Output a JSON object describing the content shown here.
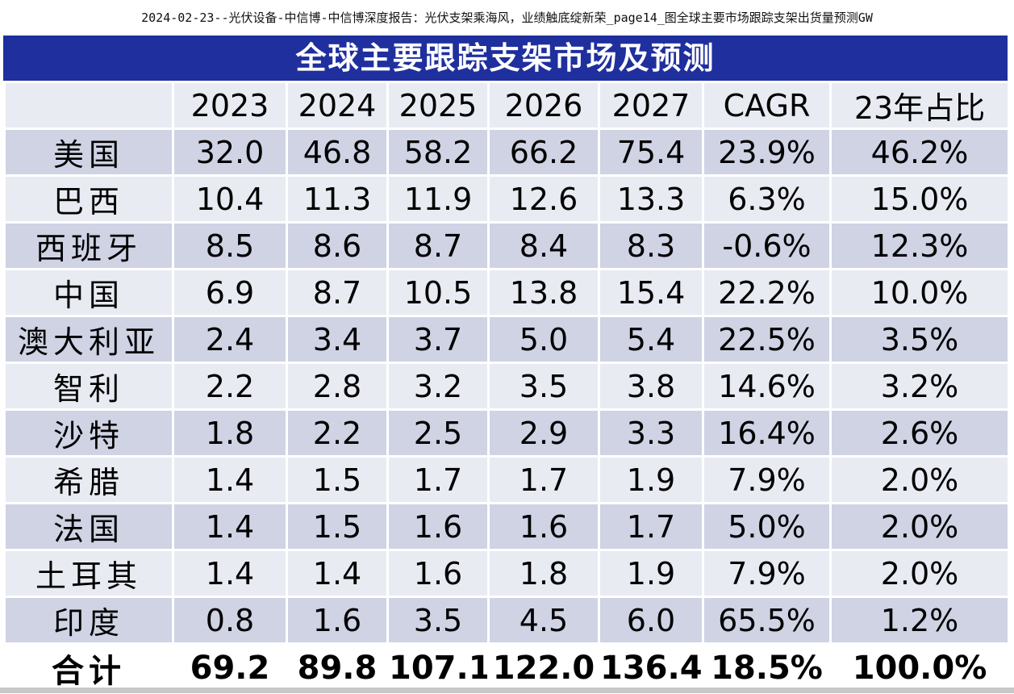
{
  "caption": "2024-02-23--光伏设备-中信博-中信博深度报告：光伏支架乘海风，业绩触底绽新荣_page14_图全球主要市场跟踪支架出货量预测GW",
  "table": {
    "title": "全球主要跟踪支架市场及预测",
    "header": [
      "",
      "2023",
      "2024",
      "2025",
      "2026",
      "2027",
      "CAGR",
      "23年占比"
    ],
    "rows": [
      [
        "美国",
        "32.0",
        "46.8",
        "58.2",
        "66.2",
        "75.4",
        "23.9%",
        "46.2%"
      ],
      [
        "巴西",
        "10.4",
        "11.3",
        "11.9",
        "12.6",
        "13.3",
        "6.3%",
        "15.0%"
      ],
      [
        "西班牙",
        "8.5",
        "8.6",
        "8.7",
        "8.4",
        "8.3",
        "-0.6%",
        "12.3%"
      ],
      [
        "中国",
        "6.9",
        "8.7",
        "10.5",
        "13.8",
        "15.4",
        "22.2%",
        "10.0%"
      ],
      [
        "澳大利亚",
        "2.4",
        "3.4",
        "3.7",
        "5.0",
        "5.4",
        "22.5%",
        "3.5%"
      ],
      [
        "智利",
        "2.2",
        "2.8",
        "3.2",
        "3.5",
        "3.8",
        "14.6%",
        "3.2%"
      ],
      [
        "沙特",
        "1.8",
        "2.2",
        "2.5",
        "2.9",
        "3.3",
        "16.4%",
        "2.6%"
      ],
      [
        "希腊",
        "1.4",
        "1.5",
        "1.7",
        "1.7",
        "1.9",
        "7.9%",
        "2.0%"
      ],
      [
        "法国",
        "1.4",
        "1.5",
        "1.6",
        "1.6",
        "1.7",
        "5.0%",
        "2.0%"
      ],
      [
        "土耳其",
        "1.4",
        "1.4",
        "1.6",
        "1.8",
        "1.9",
        "7.9%",
        "2.0%"
      ],
      [
        "印度",
        "0.8",
        "1.6",
        "3.5",
        "4.5",
        "6.0",
        "65.5%",
        "1.2%"
      ]
    ],
    "total": [
      "合计",
      "69.2",
      "89.8",
      "107.1",
      "122.0",
      "136.4",
      "18.5%",
      "100.0%"
    ]
  },
  "colors": {
    "title_bg": "#1f2f9e",
    "row_dark": "#cfd3e4",
    "row_light": "#e9ebf3"
  }
}
